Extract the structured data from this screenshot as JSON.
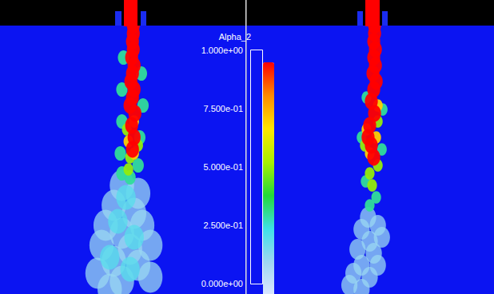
{
  "chart_data": {
    "type": "scatter",
    "marker": "ellipse",
    "tick_labels": false,
    "xlim": [
      0,
      300
    ],
    "ylim": [
      0,
      336
    ],
    "colorbar": {
      "title": "Alpha_2",
      "range": [
        0,
        1
      ],
      "ticks": [
        {
          "value": 0,
          "label": "0.000e+00"
        },
        {
          "value": 0.25,
          "label": "2.500e-01"
        },
        {
          "value": 0.5,
          "label": "5.000e-01"
        },
        {
          "value": 0.75,
          "label": "7.500e-01"
        },
        {
          "value": 1,
          "label": "1.000e+00"
        }
      ]
    },
    "panels": [
      {
        "x": [
          150,
          170,
          140,
          165,
          130,
          175,
          150,
          125,
          160,
          185,
          140,
          170,
          120,
          150,
          185,
          135,
          155,
          145,
          165,
          135,
          160,
          152,
          174,
          150,
          176,
          150,
          172,
          148,
          170,
          160,
          150,
          156,
          170,
          160,
          158,
          165,
          158,
          165,
          164,
          164,
          163,
          164,
          162,
          165,
          163,
          161,
          165,
          163,
          160,
          166,
          162,
          165,
          163
        ],
        "y": [
          200,
          210,
          225,
          235,
          250,
          250,
          260,
          275,
          280,
          275,
          295,
          300,
          310,
          320,
          315,
          330,
          215,
          245,
          265,
          290,
          305,
          40,
          60,
          80,
          100,
          120,
          140,
          160,
          175,
          190,
          185,
          130,
          150,
          165,
          180,
          120,
          145,
          160,
          0,
          10,
          20,
          30,
          40,
          50,
          60,
          70,
          80,
          90,
          100,
          110,
          125,
          140,
          155
        ],
        "values": [
          0.15,
          0.15,
          0.15,
          0.15,
          0.15,
          0.15,
          0.15,
          0.15,
          0.15,
          0.15,
          0.15,
          0.15,
          0.15,
          0.15,
          0.15,
          0.15,
          0.25,
          0.25,
          0.25,
          0.25,
          0.25,
          0.35,
          0.35,
          0.35,
          0.35,
          0.35,
          0.35,
          0.35,
          0.35,
          0.35,
          0.35,
          0.55,
          0.55,
          0.55,
          0.55,
          0.75,
          0.75,
          0.75,
          1,
          1,
          1,
          1,
          1,
          1,
          1,
          1,
          1,
          1,
          1,
          1,
          1,
          1,
          1
        ],
        "sizes": [
          15,
          15,
          15,
          15,
          15,
          15,
          15,
          15,
          15,
          15,
          15,
          15,
          15,
          15,
          15,
          15,
          12,
          12,
          12,
          12,
          12,
          7,
          7,
          7,
          7,
          7,
          7,
          7,
          7,
          7,
          7,
          6,
          6,
          6,
          6,
          6,
          6,
          6,
          8,
          8,
          8,
          8,
          8,
          8,
          8,
          8,
          8,
          8,
          8,
          8,
          8,
          8,
          8
        ]
      },
      {
        "x": [
          148,
          160,
          140,
          150,
          165,
          135,
          155,
          140,
          160,
          130,
          150,
          140,
          125,
          146,
          166,
          140,
          165,
          145,
          158,
          150,
          160,
          144,
          160,
          150,
          153,
          160,
          146,
          158,
          150,
          156,
          156,
          155,
          157,
          155,
          157,
          154,
          158,
          155,
          152,
          156,
          150,
          148,
          152,
          155
        ],
        "y": [
          240,
          250,
          255,
          270,
          265,
          280,
          285,
          300,
          300,
          310,
          315,
          330,
          325,
          90,
          105,
          140,
          155,
          195,
          215,
          225,
          120,
          150,
          175,
          185,
          200,
          100,
          130,
          140,
          160,
          0,
          10,
          20,
          30,
          40,
          50,
          60,
          70,
          80,
          95,
          110,
          125,
          140,
          150,
          165
        ],
        "values": [
          0.15,
          0.15,
          0.15,
          0.15,
          0.15,
          0.15,
          0.15,
          0.15,
          0.15,
          0.15,
          0.15,
          0.15,
          0.15,
          0.35,
          0.35,
          0.35,
          0.35,
          0.35,
          0.35,
          0.35,
          0.55,
          0.55,
          0.55,
          0.55,
          0.55,
          0.75,
          0.75,
          0.75,
          0.75,
          1,
          1,
          1,
          1,
          1,
          1,
          1,
          1,
          1,
          1,
          1,
          1,
          1,
          1,
          1
        ],
        "sizes": [
          10,
          10,
          10,
          10,
          10,
          10,
          10,
          10,
          10,
          10,
          10,
          10,
          10,
          6,
          6,
          6,
          6,
          6,
          6,
          6,
          6,
          6,
          6,
          6,
          6,
          6,
          6,
          6,
          6,
          8,
          8,
          8,
          8,
          8,
          8,
          8,
          8,
          8,
          8,
          8,
          8,
          8,
          8,
          8
        ]
      }
    ]
  }
}
